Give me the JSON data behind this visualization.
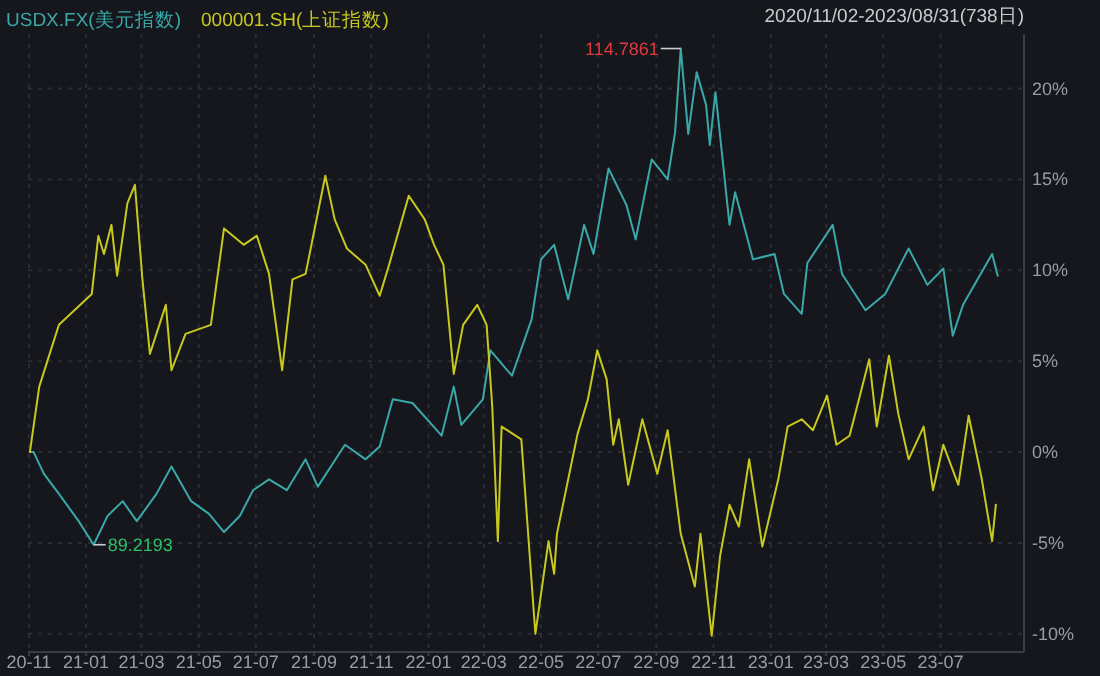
{
  "chart_data": {
    "type": "line",
    "subtitle": "2020/11/02-2023/08/31(738日)",
    "series": [
      {
        "name": "USDX.FX(美元指数)",
        "color": "#3aa8a8",
        "x": [
          "2020-11-02",
          "2020-11-06",
          "2020-11-17",
          "2020-12-03",
          "2020-12-24",
          "2021-01-09",
          "2021-01-24",
          "2021-02-09",
          "2021-02-24",
          "2021-03-17",
          "2021-04-02",
          "2021-04-23",
          "2021-05-12",
          "2021-05-28",
          "2021-06-14",
          "2021-06-28",
          "2021-07-15",
          "2021-08-03",
          "2021-08-23",
          "2021-09-05",
          "2021-10-04",
          "2021-10-26",
          "2021-11-10",
          "2021-11-24",
          "2021-12-15",
          "2022-01-15",
          "2022-01-28",
          "2022-02-05",
          "2022-02-28",
          "2022-03-08",
          "2022-03-31",
          "2022-04-21",
          "2022-05-01",
          "2022-05-15",
          "2022-05-30",
          "2022-06-16",
          "2022-06-26",
          "2022-07-12",
          "2022-07-31",
          "2022-08-10",
          "2022-08-27",
          "2022-09-13",
          "2022-09-21",
          "2022-09-27",
          "2022-10-05",
          "2022-10-14",
          "2022-10-24",
          "2022-10-28",
          "2022-11-03",
          "2022-11-18",
          "2022-11-24",
          "2022-12-13",
          "2023-01-05",
          "2023-01-15",
          "2023-02-03",
          "2023-02-09",
          "2023-03-08",
          "2023-03-18",
          "2023-04-12",
          "2023-05-03",
          "2023-05-28",
          "2023-06-17",
          "2023-07-04",
          "2023-07-14",
          "2023-07-25",
          "2023-08-25",
          "2023-08-31"
        ],
        "values": [
          0,
          0,
          -1.2,
          -2.3,
          -3.8,
          -5.1,
          -3.5,
          -2.7,
          -3.8,
          -2.3,
          -0.8,
          -2.7,
          -3.4,
          -4.4,
          -3.5,
          -2.1,
          -1.5,
          -2.1,
          -0.4,
          -1.9,
          0.4,
          -0.4,
          0.3,
          2.9,
          2.7,
          0.9,
          3.6,
          1.5,
          2.9,
          5.6,
          4.2,
          7.3,
          10.6,
          11.4,
          8.4,
          12.5,
          10.9,
          15.6,
          13.6,
          11.7,
          16.1,
          15.0,
          17.6,
          22.2,
          17.5,
          20.9,
          19.1,
          16.9,
          19.8,
          12.5,
          14.3,
          10.6,
          10.9,
          8.7,
          7.6,
          10.4,
          12.5,
          9.8,
          7.8,
          8.7,
          11.2,
          9.2,
          10.1,
          6.4,
          8.1,
          10.9,
          9.7
        ]
      },
      {
        "name": "000001.SH(上证指数)",
        "color": "#c8c81e",
        "x": [
          "2020-11-02",
          "2020-11-12",
          "2020-12-03",
          "2021-01-07",
          "2021-01-14",
          "2021-01-20",
          "2021-01-28",
          "2021-02-03",
          "2021-02-14",
          "2021-02-22",
          "2021-03-02",
          "2021-03-10",
          "2021-03-27",
          "2021-04-02",
          "2021-04-17",
          "2021-05-14",
          "2021-05-28",
          "2021-06-18",
          "2021-07-02",
          "2021-07-15",
          "2021-07-29",
          "2021-08-09",
          "2021-08-23",
          "2021-09-13",
          "2021-09-23",
          "2021-10-06",
          "2021-10-26",
          "2021-11-10",
          "2021-11-20",
          "2021-12-11",
          "2021-12-28",
          "2022-01-07",
          "2022-01-17",
          "2022-01-28",
          "2022-02-07",
          "2022-02-22",
          "2022-03-04",
          "2022-03-10",
          "2022-03-16",
          "2022-03-20",
          "2022-04-10",
          "2022-04-25",
          "2022-05-09",
          "2022-05-15",
          "2022-05-18",
          "2022-05-30",
          "2022-06-09",
          "2022-06-20",
          "2022-06-30",
          "2022-07-10",
          "2022-07-17",
          "2022-07-23",
          "2022-08-02",
          "2022-08-17",
          "2022-09-02",
          "2022-09-13",
          "2022-09-27",
          "2022-10-12",
          "2022-10-18",
          "2022-10-24",
          "2022-10-30",
          "2022-11-08",
          "2022-11-18",
          "2022-11-28",
          "2022-12-09",
          "2022-12-23",
          "2023-01-09",
          "2023-01-19",
          "2023-02-03",
          "2023-02-15",
          "2023-03-02",
          "2023-03-12",
          "2023-03-26",
          "2023-04-06",
          "2023-04-16",
          "2023-04-24",
          "2023-05-07",
          "2023-05-17",
          "2023-05-28",
          "2023-06-13",
          "2023-06-23",
          "2023-07-04",
          "2023-07-20",
          "2023-07-31",
          "2023-08-14",
          "2023-08-25",
          "2023-08-29"
        ],
        "values": [
          0,
          3.6,
          7.0,
          8.7,
          11.9,
          10.9,
          12.5,
          9.7,
          13.7,
          14.7,
          9.5,
          5.4,
          8.1,
          4.5,
          6.5,
          7.0,
          12.3,
          11.4,
          11.9,
          9.8,
          4.5,
          9.5,
          9.8,
          15.2,
          12.8,
          11.2,
          10.3,
          8.6,
          10.3,
          14.1,
          12.8,
          11.4,
          10.3,
          4.3,
          7.0,
          8.1,
          7.0,
          2.5,
          -4.9,
          1.4,
          0.7,
          -10.0,
          -4.9,
          -6.7,
          -4.5,
          -1.5,
          1.0,
          2.9,
          5.6,
          4.0,
          0.4,
          1.8,
          -1.8,
          1.8,
          -1.2,
          1.2,
          -4.5,
          -7.4,
          -4.5,
          -7.3,
          -10.1,
          -5.7,
          -2.9,
          -4.1,
          -0.4,
          -5.2,
          -1.5,
          1.4,
          1.8,
          1.2,
          3.1,
          0.4,
          0.9,
          3.1,
          5.1,
          1.4,
          5.3,
          2.1,
          -0.4,
          1.4,
          -2.1,
          0.4,
          -1.8,
          2.0,
          -1.5,
          -4.9,
          -2.9
        ]
      }
    ],
    "xlim": [
      "2020-10-31",
      "2023-09-28"
    ],
    "xticks": [
      {
        "value": "2020-11-01",
        "label": "20-11"
      },
      {
        "value": "2021-01-01",
        "label": "21-01"
      },
      {
        "value": "2021-03-01",
        "label": "21-03"
      },
      {
        "value": "2021-05-01",
        "label": "21-05"
      },
      {
        "value": "2021-07-01",
        "label": "21-07"
      },
      {
        "value": "2021-09-01",
        "label": "21-09"
      },
      {
        "value": "2021-11-01",
        "label": "21-11"
      },
      {
        "value": "2022-01-01",
        "label": "22-01"
      },
      {
        "value": "2022-03-01",
        "label": "22-03"
      },
      {
        "value": "2022-05-01",
        "label": "22-05"
      },
      {
        "value": "2022-07-01",
        "label": "22-07"
      },
      {
        "value": "2022-09-01",
        "label": "22-09"
      },
      {
        "value": "2022-11-01",
        "label": "22-11"
      },
      {
        "value": "2023-01-01",
        "label": "23-01"
      },
      {
        "value": "2023-03-01",
        "label": "23-03"
      },
      {
        "value": "2023-05-01",
        "label": "23-05"
      },
      {
        "value": "2023-07-01",
        "label": "23-07"
      }
    ],
    "ylim": [
      -11,
      23
    ],
    "yticks": [
      {
        "value": -10,
        "label": "-10%"
      },
      {
        "value": -5,
        "label": "-5%"
      },
      {
        "value": 0,
        "label": "0%"
      },
      {
        "value": 5,
        "label": "5%"
      },
      {
        "value": 10,
        "label": "10%"
      },
      {
        "value": 15,
        "label": "15%"
      },
      {
        "value": 20,
        "label": "20%"
      }
    ],
    "annotations": [
      {
        "text": "114.7861",
        "x": "2022-09-27",
        "y": 22.2
      },
      {
        "text": "89.2193",
        "x": "2021-01-09",
        "y": -5.1
      }
    ],
    "grid": true,
    "legend": "top left"
  }
}
